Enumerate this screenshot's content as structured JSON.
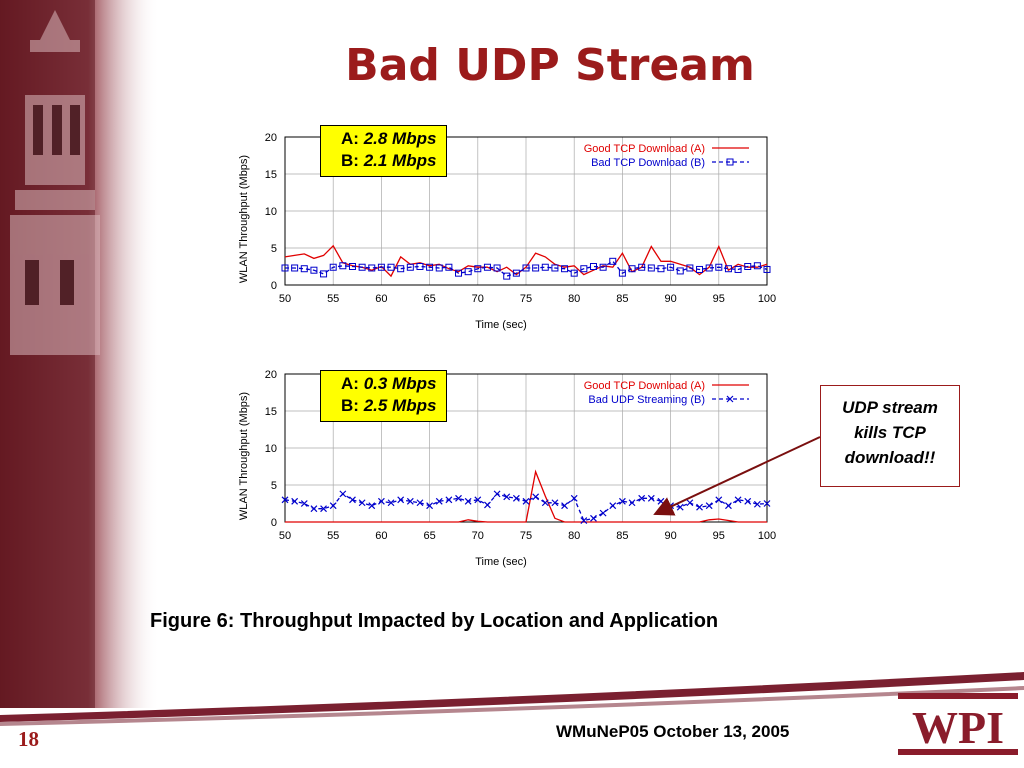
{
  "slide": {
    "title": "Bad UDP Stream",
    "caption": "Figure 6: Throughput  Impacted by Location and Application",
    "footer": "WMuNeP05 October 13, 2005",
    "page_number": "18",
    "logo_text": "WPI",
    "callout": {
      "line1": "UDP stream",
      "line2": "kills TCP",
      "line3": "download!!"
    },
    "colors": {
      "title": "#9b1b1b",
      "red_series": "#e00000",
      "blue_series": "#0000cc",
      "box": "#ffff00"
    }
  },
  "boxes": [
    {
      "a_label": "A:",
      "a_value": "2.8 Mbps",
      "b_label": "B:",
      "b_value": "2.1 Mbps"
    },
    {
      "a_label": "A:",
      "a_value": "0.3 Mbps",
      "b_label": "B:",
      "b_value": "2.5 Mbps"
    }
  ],
  "chart_data": [
    {
      "type": "line",
      "xlabel": "Time (sec)",
      "ylabel": "WLAN Throughput (Mbps)",
      "xlim": [
        50,
        100
      ],
      "ylim": [
        0,
        20
      ],
      "xticks": [
        50,
        55,
        60,
        65,
        70,
        75,
        80,
        85,
        90,
        95,
        100
      ],
      "yticks": [
        0,
        5,
        10,
        15,
        20
      ],
      "grid": true,
      "legend": "top-right",
      "x": [
        50,
        51,
        52,
        53,
        54,
        55,
        56,
        57,
        58,
        59,
        60,
        61,
        62,
        63,
        64,
        65,
        66,
        67,
        68,
        69,
        70,
        71,
        72,
        73,
        74,
        75,
        76,
        77,
        78,
        79,
        80,
        81,
        82,
        83,
        84,
        85,
        86,
        87,
        88,
        89,
        90,
        91,
        92,
        93,
        94,
        95,
        96,
        97,
        98,
        99,
        100
      ],
      "series": [
        {
          "name": "Good TCP Download (A)",
          "color": "#e00000",
          "marker": "none",
          "values": [
            3.8,
            4.0,
            4.2,
            3.6,
            4.0,
            5.3,
            3.0,
            2.6,
            2.4,
            2.0,
            2.5,
            1.2,
            3.8,
            2.8,
            3.0,
            2.6,
            2.8,
            2.2,
            1.8,
            2.6,
            2.4,
            2.4,
            1.8,
            2.4,
            1.4,
            2.4,
            4.3,
            3.8,
            2.8,
            2.4,
            2.6,
            1.4,
            2.0,
            2.6,
            2.4,
            4.3,
            1.8,
            2.4,
            5.2,
            3.2,
            3.2,
            2.8,
            2.4,
            1.4,
            2.4,
            5.2,
            2.0,
            2.8,
            2.4,
            2.4,
            2.8
          ]
        },
        {
          "name": "Bad TCP Download (B)",
          "color": "#0000cc",
          "marker": "square",
          "values": [
            2.3,
            2.3,
            2.2,
            2.0,
            1.5,
            2.4,
            2.6,
            2.5,
            2.4,
            2.3,
            2.4,
            2.4,
            2.2,
            2.4,
            2.5,
            2.4,
            2.3,
            2.4,
            1.6,
            1.8,
            2.2,
            2.4,
            2.3,
            1.2,
            1.6,
            2.3,
            2.3,
            2.4,
            2.3,
            2.2,
            1.6,
            2.2,
            2.5,
            2.4,
            3.2,
            1.6,
            2.2,
            2.4,
            2.3,
            2.2,
            2.4,
            1.9,
            2.3,
            2.1,
            2.3,
            2.4,
            2.2,
            2.1,
            2.5,
            2.6,
            2.1
          ]
        }
      ]
    },
    {
      "type": "line",
      "xlabel": "Time (sec)",
      "ylabel": "WLAN Throughput (Mbps)",
      "xlim": [
        50,
        100
      ],
      "ylim": [
        0,
        20
      ],
      "xticks": [
        50,
        55,
        60,
        65,
        70,
        75,
        80,
        85,
        90,
        95,
        100
      ],
      "yticks": [
        0,
        5,
        10,
        15,
        20
      ],
      "grid": true,
      "legend": "top-right",
      "x": [
        50,
        51,
        52,
        53,
        54,
        55,
        56,
        57,
        58,
        59,
        60,
        61,
        62,
        63,
        64,
        65,
        66,
        67,
        68,
        69,
        70,
        71,
        72,
        73,
        74,
        75,
        76,
        77,
        78,
        79,
        80,
        81,
        82,
        83,
        84,
        85,
        86,
        87,
        88,
        89,
        90,
        91,
        92,
        93,
        94,
        95,
        96,
        97,
        98,
        99,
        100
      ],
      "series": [
        {
          "name": "Good TCP Download (A)",
          "color": "#e00000",
          "marker": "none",
          "values": [
            0,
            0,
            0,
            0,
            0,
            0,
            0,
            0,
            0,
            0,
            0,
            0,
            0,
            0,
            0,
            0,
            0,
            0,
            0,
            0.3,
            0.1,
            0,
            0,
            0,
            0,
            0,
            6.8,
            3.5,
            0.5,
            0,
            0,
            0,
            0,
            0,
            0,
            0,
            0,
            0,
            0,
            0,
            0,
            0,
            0,
            0,
            0.3,
            0.4,
            0.2,
            0,
            0,
            0,
            0
          ]
        },
        {
          "name": "Bad UDP Streaming (B)",
          "color": "#0000cc",
          "marker": "x",
          "values": [
            3.0,
            2.8,
            2.5,
            1.8,
            1.8,
            2.2,
            3.8,
            3.0,
            2.6,
            2.2,
            2.8,
            2.6,
            3.0,
            2.8,
            2.6,
            2.2,
            2.8,
            3.0,
            3.2,
            2.8,
            3.0,
            2.3,
            3.8,
            3.4,
            3.2,
            2.8,
            3.4,
            2.6,
            2.6,
            2.2,
            3.2,
            0.2,
            0.5,
            1.2,
            2.2,
            2.8,
            2.6,
            3.2,
            3.2,
            2.8,
            2.2,
            2.0,
            2.6,
            2.0,
            2.2,
            3.0,
            2.2,
            3.0,
            2.8,
            2.4,
            2.5
          ]
        }
      ]
    }
  ]
}
